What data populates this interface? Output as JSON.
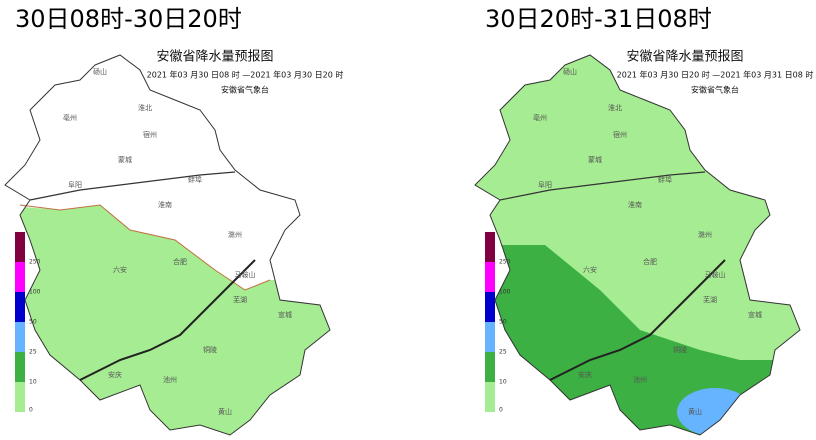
{
  "panels": [
    {
      "title": "30日08时-30日20时",
      "map_title": "安徽省降水量预报图",
      "period": "2021 年03 月30 日08 时 —2021 年03 月30 日20 时",
      "issuer": "安徽省气象台"
    },
    {
      "title": "30日20时-31日08时",
      "map_title": "安徽省降水量预报图",
      "period": "2021 年03 月30 日20 时 —2021 年03 月31 日08 时",
      "issuer": "安徽省气象台"
    }
  ],
  "legend": {
    "labels": [
      "250",
      "100",
      "50",
      "25",
      "10",
      "0"
    ],
    "colors": [
      "#800040",
      "#ff00ff",
      "#0000cc",
      "#66b3ff",
      "#3cb043",
      "#a6ec92"
    ]
  },
  "cities": [
    "砀山",
    "亳州",
    "淮北",
    "宿州",
    "阜阳",
    "蒙城",
    "蚌埠",
    "淮南",
    "滁州",
    "六安",
    "合肥",
    "马鞍山",
    "芜湖",
    "宣城",
    "铜陵",
    "池州",
    "安庆",
    "黄山"
  ]
}
